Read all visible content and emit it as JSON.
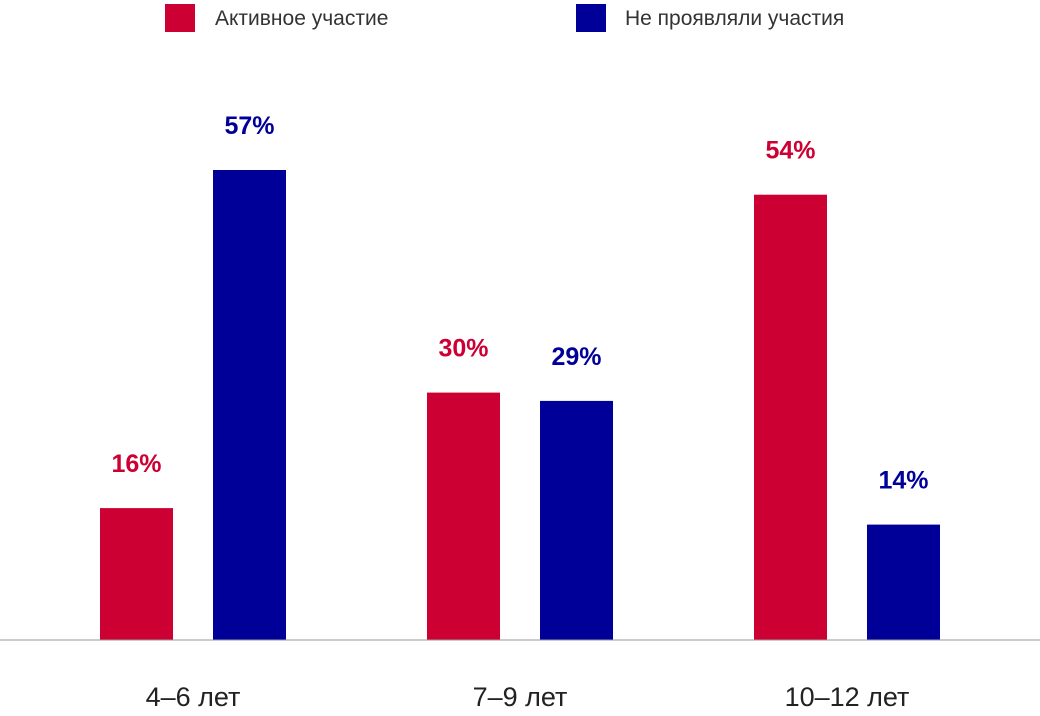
{
  "chart_data": {
    "type": "bar",
    "categories": [
      "4–6 лет",
      "7–9 лет",
      "10–12 лет"
    ],
    "series": [
      {
        "name": "Активное участие",
        "color": "#CC0033",
        "values": [
          16,
          30,
          54
        ],
        "labels": [
          "16%",
          "30%",
          "54%"
        ]
      },
      {
        "name": "Не проявляли участия",
        "color": "#000099",
        "values": [
          57,
          29,
          14
        ],
        "labels": [
          "57%",
          "29%",
          "14%"
        ]
      }
    ],
    "title": "",
    "xlabel": "",
    "ylabel": "",
    "ylim": [
      0,
      57
    ],
    "grid": false,
    "legend_position": "top"
  }
}
